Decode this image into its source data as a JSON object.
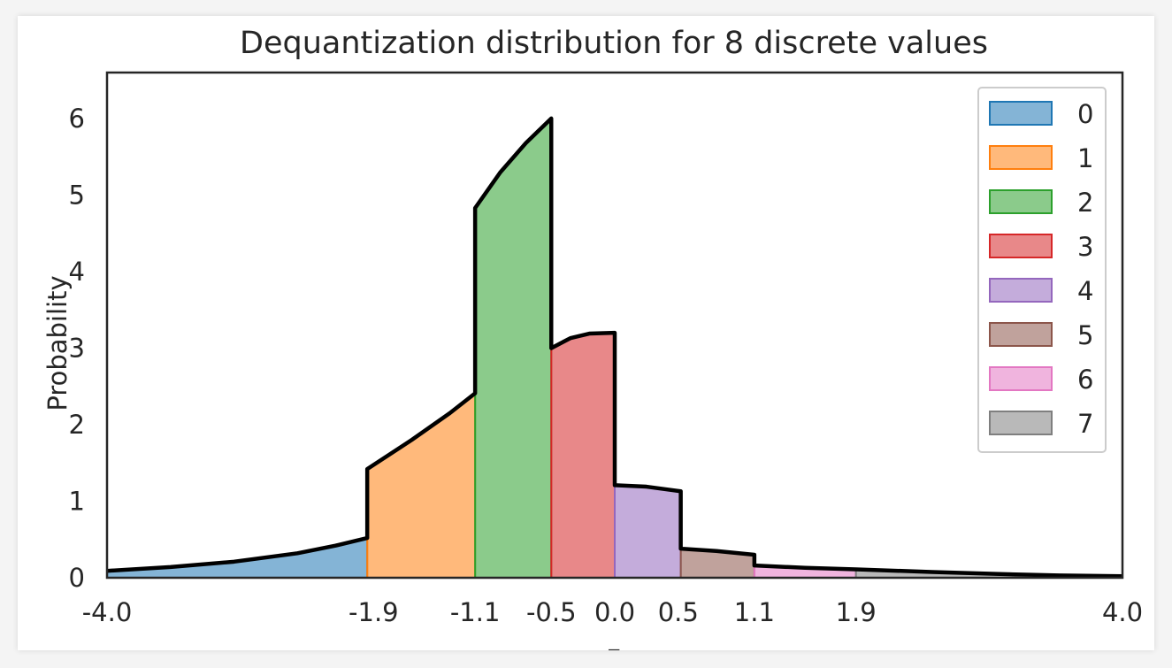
{
  "chart_data": {
    "type": "area",
    "title": "Dequantization distribution for 8 discrete values",
    "ylabel": "Probability",
    "xlabel": "z",
    "xlim": [
      -4.0,
      4.0
    ],
    "ylim": [
      0,
      6.6
    ],
    "x_ticks": [
      -4.0,
      -1.9,
      -1.1,
      -0.5,
      0.0,
      0.5,
      1.1,
      1.9,
      4.0
    ],
    "x_tick_labels": [
      "-4.0",
      "-1.9",
      "-1.1",
      "-0.5",
      "0.0",
      "0.5",
      "1.1",
      "1.9",
      "4.0"
    ],
    "y_ticks": [
      0,
      1,
      2,
      3,
      4,
      5,
      6
    ],
    "y_tick_labels": [
      "0",
      "1",
      "2",
      "3",
      "4",
      "5",
      "6"
    ],
    "grid": false,
    "legend_position": "top-right",
    "outline_color": "#000000",
    "series": [
      {
        "name": "0",
        "color": "#1f77b4",
        "x": [
          -4.0,
          -3.5,
          -3.0,
          -2.5,
          -2.2,
          -1.95
        ],
        "y": [
          0.09,
          0.14,
          0.21,
          0.32,
          0.42,
          0.52
        ]
      },
      {
        "name": "1",
        "color": "#ff7f0e",
        "x": [
          -1.95,
          -1.6,
          -1.3,
          -1.1
        ],
        "y": [
          1.42,
          1.8,
          2.15,
          2.41
        ]
      },
      {
        "name": "2",
        "color": "#2ca02c",
        "x": [
          -1.1,
          -0.9,
          -0.7,
          -0.5
        ],
        "y": [
          4.83,
          5.3,
          5.68,
          6.0
        ]
      },
      {
        "name": "3",
        "color": "#d62728",
        "x": [
          -0.5,
          -0.35,
          -0.2,
          0.0
        ],
        "y": [
          3.0,
          3.13,
          3.19,
          3.2
        ]
      },
      {
        "name": "4",
        "color": "#9467bd",
        "x": [
          0.0,
          0.25,
          0.52
        ],
        "y": [
          1.21,
          1.19,
          1.13
        ]
      },
      {
        "name": "5",
        "color": "#8c564b",
        "x": [
          0.52,
          0.8,
          1.1
        ],
        "y": [
          0.38,
          0.35,
          0.3
        ]
      },
      {
        "name": "6",
        "color": "#e377c2",
        "x": [
          1.1,
          1.5,
          1.9
        ],
        "y": [
          0.16,
          0.13,
          0.11
        ]
      },
      {
        "name": "7",
        "color": "#7f7f7f",
        "x": [
          1.9,
          2.5,
          3.0,
          3.5,
          4.0
        ],
        "y": [
          0.11,
          0.075,
          0.05,
          0.03,
          0.02
        ]
      }
    ]
  }
}
